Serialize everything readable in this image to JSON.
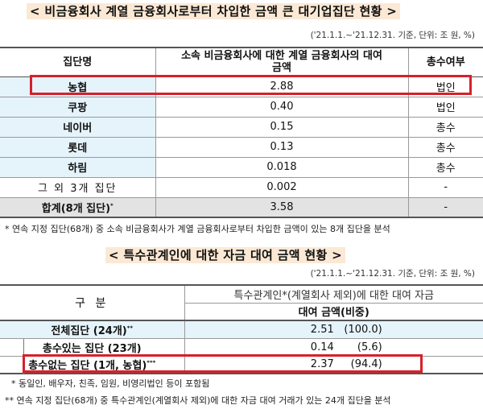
{
  "table1": {
    "title": "< 비금융회사 계열 금융회사로부터 차입한 금액 큰 대기업집단 현황 >",
    "unit": "('21.1.1.~'21.12.31. 기준, 단위: 조 원, %)",
    "headers": [
      "집단명",
      "소속 비금융회사에 대한 계열 금융회사의 대여 금액",
      "총수여부"
    ],
    "rows": [
      {
        "name": "농협",
        "amount": "2.88",
        "owner": "법인",
        "highlighted": true
      },
      {
        "name": "쿠팡",
        "amount": "0.40",
        "owner": "법인"
      },
      {
        "name": "네이버",
        "amount": "0.15",
        "owner": "총수"
      },
      {
        "name": "롯데",
        "amount": "0.13",
        "owner": "총수"
      },
      {
        "name": "하림",
        "amount": "0.018",
        "owner": "총수"
      },
      {
        "name": "그 외 3개 집단",
        "amount": "0.002",
        "owner": "-"
      },
      {
        "name": "합계(8개 집단)",
        "mark": "*",
        "amount": "3.58",
        "owner": "-"
      }
    ],
    "footnote": "* 연속 지정 집단(68개) 중 소속 비금융회사가 계열 금융회사로부터 차입한 금액이 있는 8개 집단을 분석"
  },
  "table2": {
    "title": "< 특수관계인에 대한 자금 대여 금액 현황 >",
    "unit": "('21.1.1.~'21.12.31. 기준, 단위: 조 원, %)",
    "header_col1": "구 분",
    "header_top": "특수관계인*(계열회사 제외)에 대한 대여 자금",
    "header_sub": "대여 금액(비중)",
    "rows": [
      {
        "name": "전체집단 (24개)",
        "mark": "**",
        "amount": "2.51",
        "share": "(100.0)"
      },
      {
        "name": "총수있는 집단 (23개)",
        "mark": "",
        "amount": "0.14",
        "share": "(5.6)"
      },
      {
        "name": "총수없는 집단 (1개, 농협)",
        "mark": "***",
        "amount": "2.37",
        "share": "(94.4)",
        "highlighted": true
      }
    ],
    "footnotes": [
      "* 동일인, 배우자, 친족, 임원, 비영리법인 등이 포함됨",
      "** 연속 지정 집단(68개) 중 특수관계인(계열회사 제외)에 대한 자금 대여 거래가 있는 24개 집단을 분석"
    ]
  },
  "colors": {
    "highlight_box": "#d6202b",
    "title_bg": "#fbe9d5",
    "row_blue": "#e5f3fb",
    "row_gray": "#e3e3e3"
  }
}
